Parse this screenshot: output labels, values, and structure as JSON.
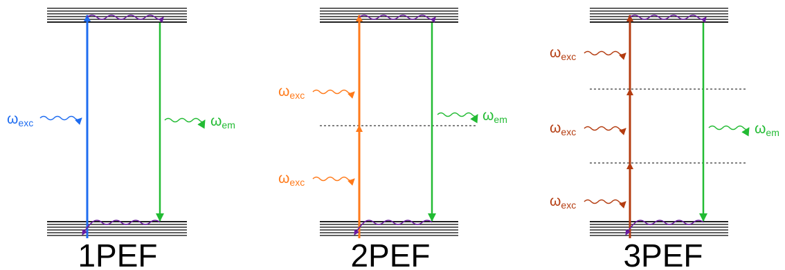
{
  "colors": {
    "level_lines": "#000000",
    "virtual_level": "#000000",
    "relaxation": "#6a1aa0",
    "emission": "#22bb33",
    "one_photon": "#1e6cf0",
    "two_photon": "#ff7a1a",
    "three_photon": "#b43c10"
  },
  "panels": [
    {
      "title": "1PEF",
      "excitation_color_key": "one_photon",
      "excitation_label": {
        "symbol": "ω",
        "subscript": "exc"
      },
      "emission_label": {
        "symbol": "ω",
        "subscript": "em"
      },
      "photon_count": 1
    },
    {
      "title": "2PEF",
      "excitation_color_key": "two_photon",
      "excitation_label": {
        "symbol": "ω",
        "subscript": "exc"
      },
      "emission_label": {
        "symbol": "ω",
        "subscript": "em"
      },
      "photon_count": 2
    },
    {
      "title": "3PEF",
      "excitation_color_key": "three_photon",
      "excitation_label": {
        "symbol": "ω",
        "subscript": "exc"
      },
      "emission_label": {
        "symbol": "ω",
        "subscript": "em"
      },
      "photon_count": 3
    }
  ]
}
